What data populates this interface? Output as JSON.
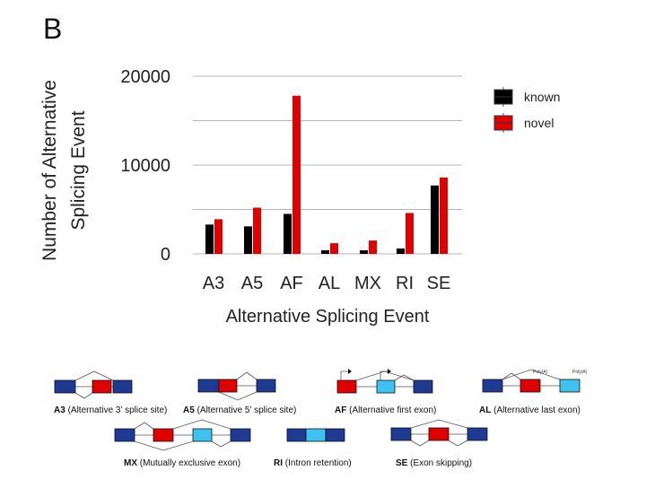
{
  "panel": "B",
  "chart_data": {
    "type": "bar",
    "categories": [
      "A3",
      "A5",
      "AF",
      "AL",
      "MX",
      "RI",
      "SE"
    ],
    "series": [
      {
        "name": "known",
        "values": [
          3300,
          3100,
          4500,
          400,
          400,
          600,
          7700
        ]
      },
      {
        "name": "novel",
        "values": [
          3900,
          5200,
          17800,
          1200,
          1500,
          4600,
          8600
        ]
      }
    ],
    "xlabel": "Alternative Splicing Event",
    "ylabel": "Number of Alternative Splicing Event",
    "ylim": [
      0,
      20000
    ],
    "yticks": [
      "0",
      "10000",
      "20000"
    ],
    "grid": true,
    "legend": "top-right",
    "colors": {
      "known": "#000000",
      "novel": "#e00000"
    }
  },
  "diagrams": [
    {
      "abbr": "A3",
      "desc": " (Alternative 3’ splice site)"
    },
    {
      "abbr": "A5",
      "desc": " (Alternative 5’ splice site)"
    },
    {
      "abbr": "AF",
      "desc": " (Alternative first exon)"
    },
    {
      "abbr": "AL",
      "desc": " (Alternative last exon)"
    },
    {
      "abbr": "MX",
      "desc": " (Mutually exclusive exon)"
    },
    {
      "abbr": "RI",
      "desc": " (Intron retention)"
    },
    {
      "abbr": "SE",
      "desc": " (Exon skipping)"
    }
  ],
  "polya_label": "Poly(A)",
  "exon_colors": {
    "constitutive": "#1f3a93",
    "red": "#e00000",
    "cyan": "#3ec3f0"
  }
}
